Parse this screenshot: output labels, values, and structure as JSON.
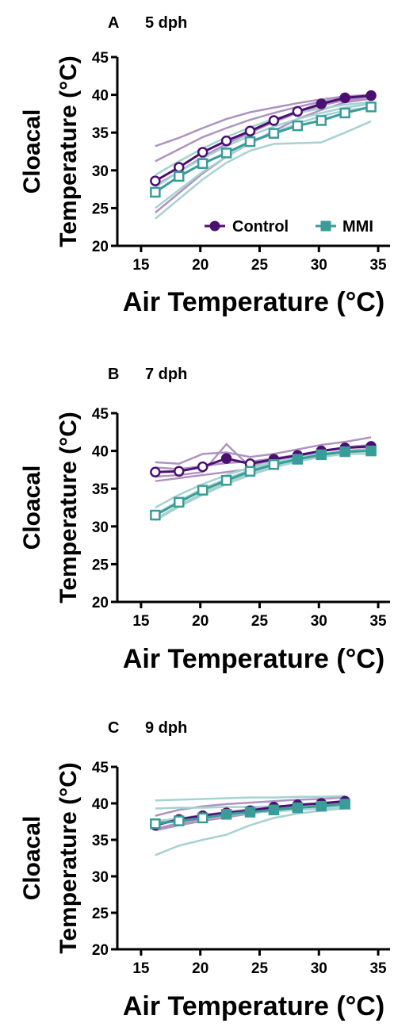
{
  "chart_data": [
    {
      "type": "line",
      "panel": "A",
      "title": "5 dph",
      "ylabel_line1": "Cloacal",
      "ylabel_line2": "Temperature (°C)",
      "xlabel": "Air Temperature (°C)",
      "xlim": [
        13,
        36
      ],
      "ylim": [
        20,
        45
      ],
      "xticks": [
        15,
        20,
        25,
        30,
        35
      ],
      "yticks": [
        20,
        25,
        30,
        35,
        40,
        45
      ],
      "grid": false,
      "legend": {
        "position": "bottom-right",
        "entries": [
          "Control",
          "MMI"
        ]
      },
      "x": [
        16.2,
        18.2,
        20.2,
        22.2,
        24.2,
        26.2,
        28.2,
        30.2,
        32.2,
        34.4
      ],
      "series": [
        {
          "name": "Control",
          "color": "#4b0f72",
          "marker": "circle",
          "values": [
            28.6,
            30.4,
            32.4,
            33.9,
            35.2,
            36.6,
            37.8,
            38.8,
            39.6,
            39.9
          ],
          "individuals": [
            [
              33.2,
              34.3,
              35.6,
              36.8,
              37.7,
              38.3,
              38.9,
              39.4,
              39.8,
              40.0
            ],
            [
              31.2,
              32.8,
              34.4,
              35.6,
              36.7,
              37.6,
              38.4,
              39.1,
              39.6,
              39.9
            ],
            [
              24.4,
              27.0,
              29.6,
              31.8,
              33.6,
              35.2,
              36.8,
              38.0,
              39.0,
              39.5
            ],
            [
              28.0,
              29.8,
              31.8,
              33.5,
              35.0,
              36.4,
              37.6,
              38.6,
              39.3,
              39.7
            ]
          ]
        },
        {
          "name": "MMI",
          "color": "#3a9c98",
          "marker": "square",
          "values": [
            27.1,
            29.2,
            30.9,
            32.3,
            33.8,
            34.9,
            35.9,
            36.6,
            37.6,
            38.4
          ],
          "individuals": [
            [
              23.6,
              26.2,
              28.8,
              31.0,
              32.6,
              33.5,
              33.6,
              33.7,
              35.0,
              36.5
            ],
            [
              25.0,
              27.4,
              29.8,
              31.8,
              33.6,
              35.0,
              36.2,
              37.2,
              37.9,
              38.4
            ],
            [
              29.4,
              31.2,
              32.9,
              34.4,
              35.7,
              36.8,
              37.6,
              38.2,
              38.7,
              39.0
            ],
            [
              27.8,
              29.8,
              31.6,
              33.2,
              34.6,
              35.8,
              36.8,
              37.6,
              38.3,
              38.8
            ]
          ]
        }
      ]
    },
    {
      "type": "line",
      "panel": "B",
      "title": "7 dph",
      "ylabel_line1": "Cloacal",
      "ylabel_line2": "Temperature (°C)",
      "xlabel": "Air Temperature (°C)",
      "xlim": [
        13,
        36
      ],
      "ylim": [
        20,
        45
      ],
      "xticks": [
        15,
        20,
        25,
        30,
        35
      ],
      "yticks": [
        20,
        25,
        30,
        35,
        40,
        45
      ],
      "grid": false,
      "x": [
        16.2,
        18.2,
        20.2,
        22.2,
        24.2,
        26.2,
        28.2,
        30.2,
        32.2,
        34.4
      ],
      "series": [
        {
          "name": "Control",
          "color": "#4b0f72",
          "marker": "circle",
          "values": [
            37.2,
            37.3,
            37.9,
            39.0,
            38.3,
            38.9,
            39.4,
            40.0,
            40.4,
            40.6
          ],
          "individuals": [
            [
              38.5,
              38.3,
              39.6,
              39.8,
              39.2,
              39.6,
              40.2,
              40.8,
              41.2,
              41.8
            ],
            [
              36.6,
              36.8,
              37.2,
              40.9,
              37.9,
              38.8,
              39.4,
              40.0,
              40.5,
              40.8
            ],
            [
              36.0,
              36.4,
              36.8,
              37.2,
              37.6,
              38.4,
              39.0,
              39.6,
              40.0,
              40.3
            ],
            [
              37.8,
              37.6,
              38.0,
              38.4,
              38.6,
              39.0,
              39.5,
              40.0,
              40.4,
              40.8
            ]
          ]
        },
        {
          "name": "MMI",
          "color": "#3a9c98",
          "marker": "square",
          "values": [
            31.5,
            33.2,
            34.8,
            36.1,
            37.3,
            38.2,
            38.9,
            39.5,
            39.9,
            40.0
          ],
          "individuals": [
            [
              32.5,
              34.2,
              35.6,
              36.8,
              37.8,
              38.6,
              39.2,
              39.6,
              39.9,
              40.1
            ],
            [
              31.0,
              32.8,
              34.4,
              35.8,
              37.0,
              38.0,
              38.8,
              39.4,
              39.8,
              40.0
            ],
            [
              30.8,
              32.6,
              34.2,
              35.6,
              36.8,
              37.8,
              38.6,
              39.2,
              39.6,
              39.6
            ],
            [
              31.6,
              33.4,
              35.0,
              36.3,
              37.5,
              38.4,
              39.0,
              39.6,
              40.0,
              40.2
            ]
          ]
        }
      ]
    },
    {
      "type": "line",
      "panel": "C",
      "title": "9 dph",
      "ylabel_line1": "Cloacal",
      "ylabel_line2": "Temperature (°C)",
      "xlabel": "Air Temperature (°C)",
      "xlim": [
        13,
        36
      ],
      "ylim": [
        20,
        45
      ],
      "xticks": [
        15,
        20,
        25,
        30,
        35
      ],
      "yticks": [
        20,
        25,
        30,
        35,
        40,
        45
      ],
      "grid": false,
      "x": [
        16.2,
        18.2,
        20.2,
        22.2,
        24.2,
        26.2,
        28.2,
        30.2,
        32.2
      ],
      "series": [
        {
          "name": "Control",
          "color": "#4b0f72",
          "marker": "circle",
          "values": [
            37.0,
            37.8,
            38.3,
            38.7,
            39.0,
            39.5,
            39.8,
            40.0,
            40.3
          ],
          "individuals": [
            [
              38.3,
              39.1,
              39.6,
              39.9,
              40.1,
              40.3,
              40.5,
              40.6,
              40.8
            ],
            [
              36.5,
              37.3,
              37.9,
              38.4,
              38.8,
              39.2,
              39.6,
              39.9,
              40.2
            ],
            [
              36.3,
              37.0,
              37.6,
              38.1,
              38.6,
              39.0,
              39.4,
              39.7,
              40.0
            ],
            [
              37.4,
              37.9,
              38.4,
              38.8,
              39.2,
              39.5,
              39.8,
              40.0,
              40.3
            ]
          ]
        },
        {
          "name": "MMI",
          "color": "#3a9c98",
          "marker": "square",
          "values": [
            37.2,
            37.6,
            38.0,
            38.5,
            38.8,
            39.1,
            39.4,
            39.6,
            39.9
          ],
          "individuals": [
            [
              40.4,
              40.5,
              40.6,
              40.7,
              40.8,
              40.8,
              40.9,
              40.9,
              41.0
            ],
            [
              32.9,
              34.2,
              35.0,
              35.7,
              37.0,
              38.0,
              38.6,
              39.0,
              39.3
            ],
            [
              39.3,
              39.4,
              39.4,
              39.5,
              39.5,
              39.6,
              39.6,
              39.6,
              39.6
            ],
            [
              37.6,
              37.9,
              38.1,
              38.4,
              38.7,
              38.9,
              39.1,
              39.3,
              39.4
            ]
          ]
        }
      ]
    }
  ]
}
